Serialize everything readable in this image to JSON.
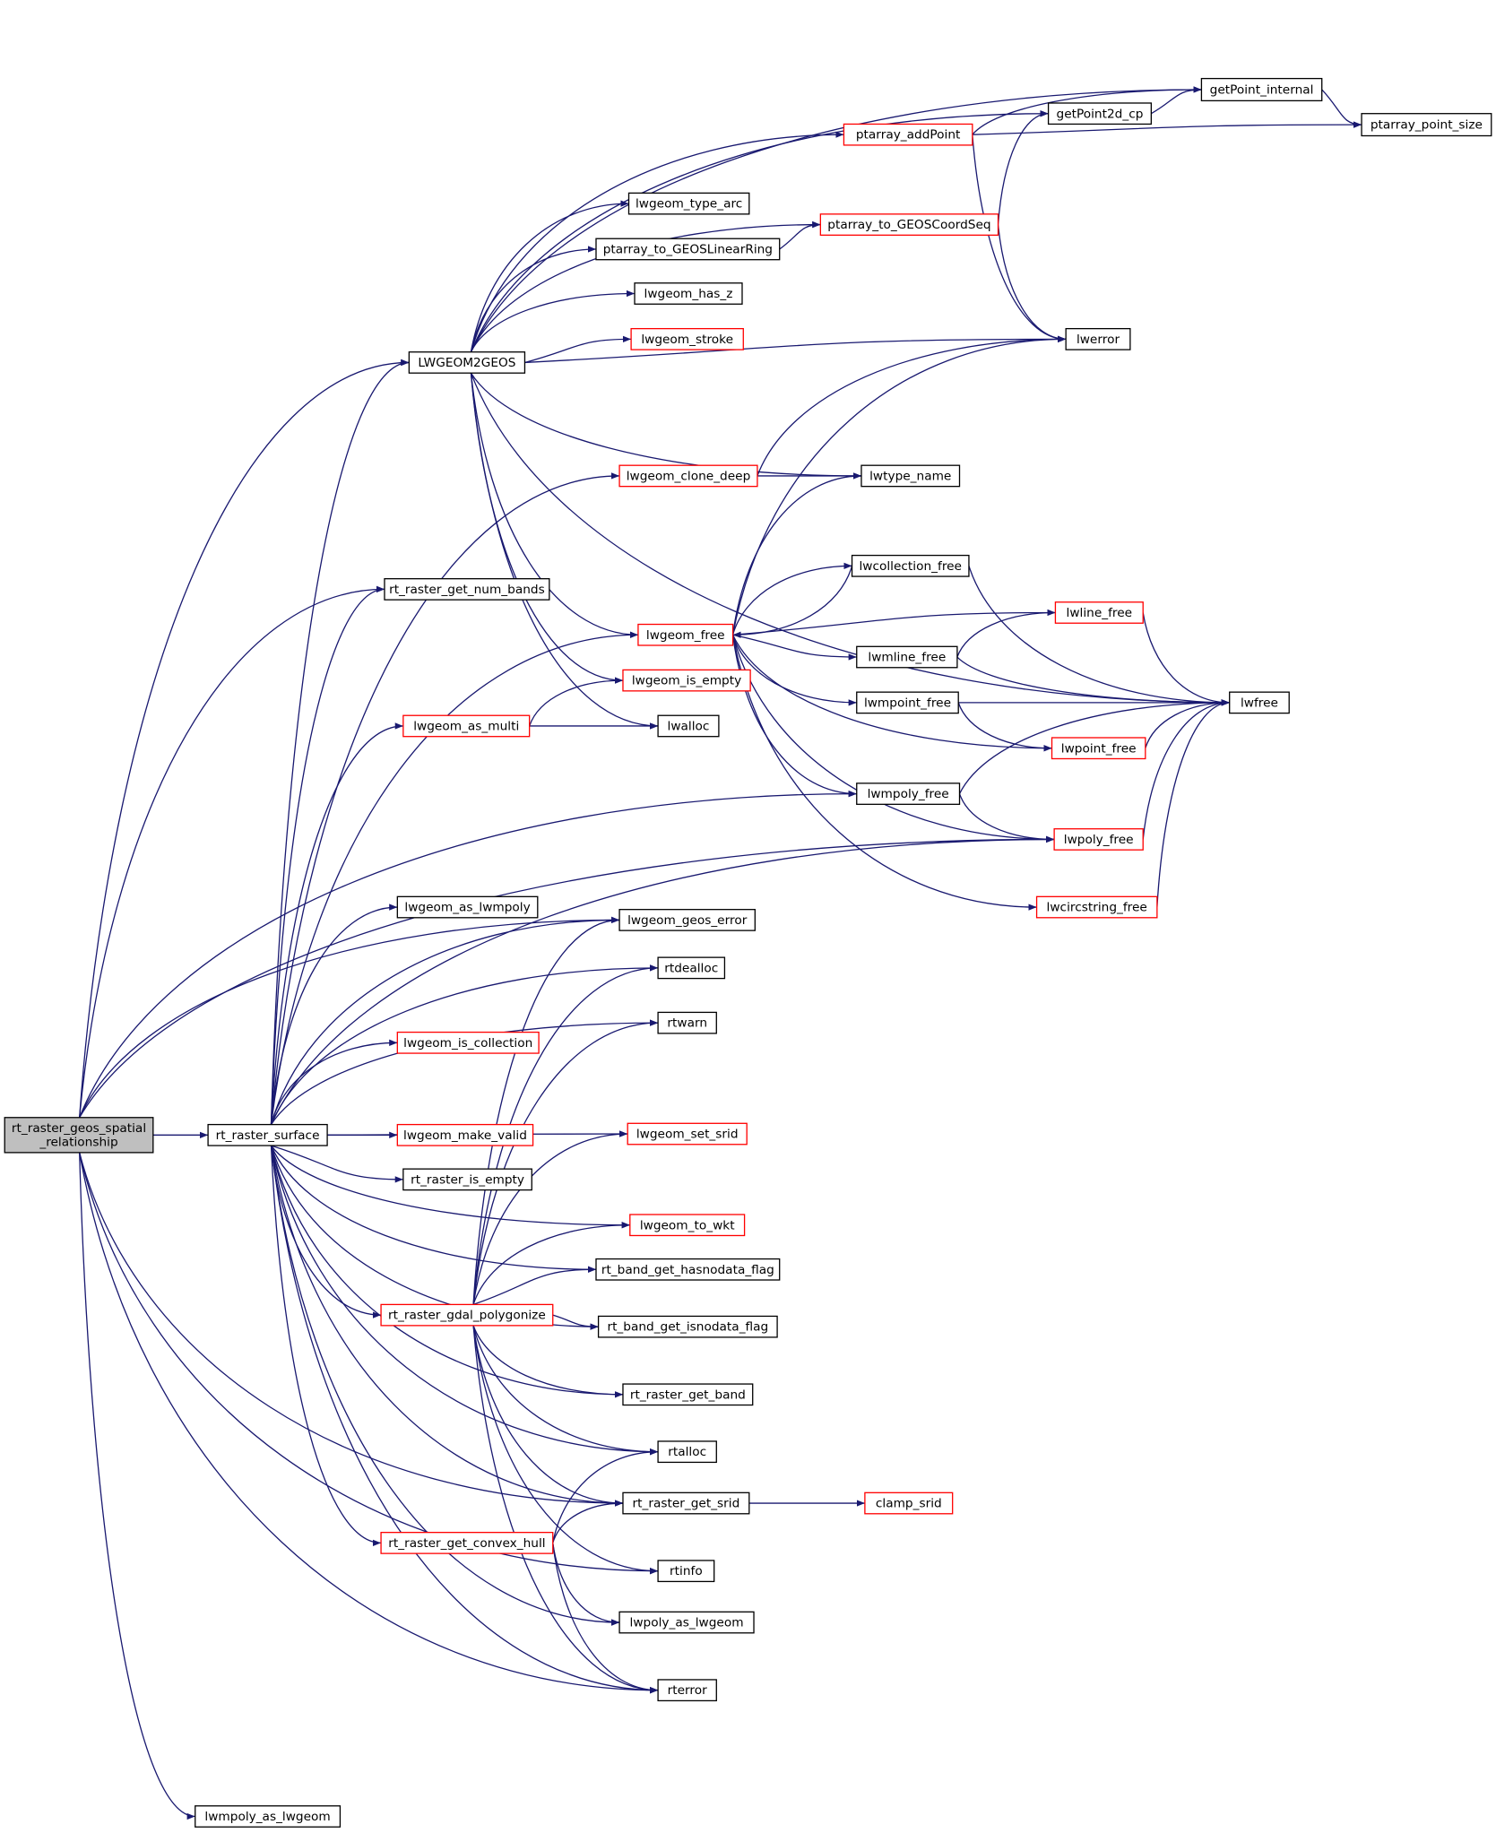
{
  "diagram": {
    "type": "call-graph",
    "colors": {
      "edge": "#191970",
      "root_fill": "#bfbfbf",
      "truncated_border": "#ff0000",
      "normal_border": "#000000"
    },
    "nodes": [
      {
        "id": "root",
        "label": [
          "rt_raster_geos_spatial",
          "_relationship"
        ],
        "style": "root"
      },
      {
        "id": "surface",
        "label": [
          "rt_raster_surface"
        ],
        "style": "normal"
      },
      {
        "id": "make_valid",
        "label": [
          "lwgeom_make_valid"
        ],
        "style": "red"
      },
      {
        "id": "is_empty_r",
        "label": [
          "rt_raster_is_empty"
        ],
        "style": "normal"
      },
      {
        "id": "l2g",
        "label": [
          "LWGEOM2GEOS"
        ],
        "style": "normal"
      },
      {
        "id": "num_bands",
        "label": [
          "rt_raster_get_num_bands"
        ],
        "style": "normal"
      },
      {
        "id": "as_multi",
        "label": [
          "lwgeom_as_multi"
        ],
        "style": "red"
      },
      {
        "id": "as_lwmpoly",
        "label": [
          "lwgeom_as_lwmpoly"
        ],
        "style": "normal"
      },
      {
        "id": "is_collection",
        "label": [
          "lwgeom_is_collection"
        ],
        "style": "red"
      },
      {
        "id": "polygonize",
        "label": [
          "rt_raster_gdal_polygonize"
        ],
        "style": "red"
      },
      {
        "id": "convex_hull",
        "label": [
          "rt_raster_get_convex_hull"
        ],
        "style": "red"
      },
      {
        "id": "mpoly_as_lwgeom",
        "label": [
          "lwmpoly_as_lwgeom"
        ],
        "style": "normal"
      },
      {
        "id": "type_arc",
        "label": [
          "lwgeom_type_arc"
        ],
        "style": "normal"
      },
      {
        "id": "to_linearring",
        "label": [
          "ptarray_to_GEOSLinearRing"
        ],
        "style": "normal"
      },
      {
        "id": "has_z",
        "label": [
          "lwgeom_has_z"
        ],
        "style": "normal"
      },
      {
        "id": "stroke",
        "label": [
          "lwgeom_stroke"
        ],
        "style": "red"
      },
      {
        "id": "clone_deep",
        "label": [
          "lwgeom_clone_deep"
        ],
        "style": "red"
      },
      {
        "id": "lwgeom_free",
        "label": [
          "lwgeom_free"
        ],
        "style": "red"
      },
      {
        "id": "is_empty",
        "label": [
          "lwgeom_is_empty"
        ],
        "style": "red"
      },
      {
        "id": "lwalloc",
        "label": [
          "lwalloc"
        ],
        "style": "normal"
      },
      {
        "id": "geos_error",
        "label": [
          "lwgeom_geos_error"
        ],
        "style": "normal"
      },
      {
        "id": "rtdealloc",
        "label": [
          "rtdealloc"
        ],
        "style": "normal"
      },
      {
        "id": "rtwarn",
        "label": [
          "rtwarn"
        ],
        "style": "normal"
      },
      {
        "id": "set_srid",
        "label": [
          "lwgeom_set_srid"
        ],
        "style": "red"
      },
      {
        "id": "to_wkt",
        "label": [
          "lwgeom_to_wkt"
        ],
        "style": "red"
      },
      {
        "id": "hasnodata",
        "label": [
          "rt_band_get_hasnodata_flag"
        ],
        "style": "normal"
      },
      {
        "id": "isnodata",
        "label": [
          "rt_band_get_isnodata_flag"
        ],
        "style": "normal"
      },
      {
        "id": "get_band",
        "label": [
          "rt_raster_get_band"
        ],
        "style": "normal"
      },
      {
        "id": "rtalloc",
        "label": [
          "rtalloc"
        ],
        "style": "normal"
      },
      {
        "id": "get_srid",
        "label": [
          "rt_raster_get_srid"
        ],
        "style": "normal"
      },
      {
        "id": "rtinfo",
        "label": [
          "rtinfo"
        ],
        "style": "normal"
      },
      {
        "id": "poly_as_lwgeom",
        "label": [
          "lwpoly_as_lwgeom"
        ],
        "style": "normal"
      },
      {
        "id": "rterror",
        "label": [
          "rterror"
        ],
        "style": "normal"
      },
      {
        "id": "addPoint",
        "label": [
          "ptarray_addPoint"
        ],
        "style": "red"
      },
      {
        "id": "coordseq",
        "label": [
          "ptarray_to_GEOSCoordSeq"
        ],
        "style": "red"
      },
      {
        "id": "getPoint2d_cp",
        "label": [
          "getPoint2d_cp"
        ],
        "style": "normal"
      },
      {
        "id": "getPoint_internal",
        "label": [
          "getPoint_internal"
        ],
        "style": "normal"
      },
      {
        "id": "point_size",
        "label": [
          "ptarray_point_size"
        ],
        "style": "normal"
      },
      {
        "id": "lwerror",
        "label": [
          "lwerror"
        ],
        "style": "normal"
      },
      {
        "id": "lwtype_name",
        "label": [
          "lwtype_name"
        ],
        "style": "normal"
      },
      {
        "id": "coll_free",
        "label": [
          "lwcollection_free"
        ],
        "style": "normal"
      },
      {
        "id": "mline_free",
        "label": [
          "lwmline_free"
        ],
        "style": "normal"
      },
      {
        "id": "mpoint_free",
        "label": [
          "lwmpoint_free"
        ],
        "style": "normal"
      },
      {
        "id": "mpoly_free",
        "label": [
          "lwmpoly_free"
        ],
        "style": "normal"
      },
      {
        "id": "line_free",
        "label": [
          "lwline_free"
        ],
        "style": "red"
      },
      {
        "id": "point_free",
        "label": [
          "lwpoint_free"
        ],
        "style": "red"
      },
      {
        "id": "poly_free",
        "label": [
          "lwpoly_free"
        ],
        "style": "red"
      },
      {
        "id": "circ_free",
        "label": [
          "lwcircstring_free"
        ],
        "style": "red"
      },
      {
        "id": "lwfree",
        "label": [
          "lwfree"
        ],
        "style": "normal"
      },
      {
        "id": "clamp_srid",
        "label": [
          "clamp_srid"
        ],
        "style": "red"
      }
    ],
    "edges": [
      [
        "root",
        "surface"
      ],
      [
        "root",
        "l2g"
      ],
      [
        "root",
        "num_bands"
      ],
      [
        "root",
        "mpoly_free"
      ],
      [
        "root",
        "poly_free"
      ],
      [
        "root",
        "geos_error"
      ],
      [
        "root",
        "get_srid"
      ],
      [
        "root",
        "rtinfo"
      ],
      [
        "root",
        "rterror"
      ],
      [
        "root",
        "mpoly_as_lwgeom"
      ],
      [
        "surface",
        "l2g"
      ],
      [
        "surface",
        "num_bands"
      ],
      [
        "surface",
        "lwgeom_free"
      ],
      [
        "surface",
        "as_multi"
      ],
      [
        "surface",
        "clone_deep"
      ],
      [
        "surface",
        "poly_free"
      ],
      [
        "surface",
        "as_lwmpoly"
      ],
      [
        "surface",
        "geos_error"
      ],
      [
        "surface",
        "rtdealloc"
      ],
      [
        "surface",
        "rtwarn"
      ],
      [
        "surface",
        "is_collection"
      ],
      [
        "surface",
        "set_srid"
      ],
      [
        "surface",
        "make_valid"
      ],
      [
        "surface",
        "is_empty_r"
      ],
      [
        "surface",
        "to_wkt"
      ],
      [
        "surface",
        "hasnodata"
      ],
      [
        "surface",
        "polygonize"
      ],
      [
        "surface",
        "isnodata"
      ],
      [
        "surface",
        "get_band"
      ],
      [
        "surface",
        "rtalloc"
      ],
      [
        "surface",
        "get_srid"
      ],
      [
        "surface",
        "convex_hull"
      ],
      [
        "surface",
        "poly_as_lwgeom"
      ],
      [
        "surface",
        "rterror"
      ],
      [
        "l2g",
        "getPoint_internal"
      ],
      [
        "l2g",
        "getPoint2d_cp"
      ],
      [
        "l2g",
        "addPoint"
      ],
      [
        "l2g",
        "coordseq"
      ],
      [
        "l2g",
        "type_arc"
      ],
      [
        "l2g",
        "to_linearring"
      ],
      [
        "l2g",
        "has_z"
      ],
      [
        "l2g",
        "stroke"
      ],
      [
        "l2g",
        "lwerror"
      ],
      [
        "l2g",
        "lwfree"
      ],
      [
        "l2g",
        "lwtype_name"
      ],
      [
        "l2g",
        "lwgeom_free"
      ],
      [
        "l2g",
        "is_empty"
      ],
      [
        "l2g",
        "lwalloc"
      ],
      [
        "addPoint",
        "getPoint_internal"
      ],
      [
        "addPoint",
        "point_size"
      ],
      [
        "addPoint",
        "lwerror"
      ],
      [
        "coordseq",
        "getPoint2d_cp"
      ],
      [
        "coordseq",
        "lwerror"
      ],
      [
        "to_linearring",
        "coordseq"
      ],
      [
        "getPoint2d_cp",
        "getPoint_internal"
      ],
      [
        "getPoint_internal",
        "point_size"
      ],
      [
        "clone_deep",
        "lwerror"
      ],
      [
        "clone_deep",
        "lwtype_name"
      ],
      [
        "lwgeom_free",
        "lwtype_name"
      ],
      [
        "lwgeom_free",
        "lwerror"
      ],
      [
        "lwgeom_free",
        "coll_free"
      ],
      [
        "lwgeom_free",
        "line_free"
      ],
      [
        "lwgeom_free",
        "mline_free"
      ],
      [
        "lwgeom_free",
        "mpoint_free"
      ],
      [
        "lwgeom_free",
        "point_free"
      ],
      [
        "lwgeom_free",
        "mpoly_free"
      ],
      [
        "lwgeom_free",
        "poly_free"
      ],
      [
        "lwgeom_free",
        "circ_free"
      ],
      [
        "coll_free",
        "lwgeom_free"
      ],
      [
        "coll_free",
        "lwfree"
      ],
      [
        "mline_free",
        "line_free"
      ],
      [
        "mline_free",
        "lwfree"
      ],
      [
        "mpoint_free",
        "lwfree"
      ],
      [
        "mpoint_free",
        "point_free"
      ],
      [
        "mpoly_free",
        "lwfree"
      ],
      [
        "mpoly_free",
        "poly_free"
      ],
      [
        "line_free",
        "lwfree"
      ],
      [
        "point_free",
        "lwfree"
      ],
      [
        "poly_free",
        "lwfree"
      ],
      [
        "circ_free",
        "lwfree"
      ],
      [
        "as_multi",
        "is_empty"
      ],
      [
        "as_multi",
        "lwalloc"
      ],
      [
        "polygonize",
        "geos_error"
      ],
      [
        "polygonize",
        "rtdealloc"
      ],
      [
        "polygonize",
        "rtwarn"
      ],
      [
        "polygonize",
        "set_srid"
      ],
      [
        "polygonize",
        "to_wkt"
      ],
      [
        "polygonize",
        "hasnodata"
      ],
      [
        "polygonize",
        "isnodata"
      ],
      [
        "polygonize",
        "get_band"
      ],
      [
        "polygonize",
        "rtalloc"
      ],
      [
        "polygonize",
        "get_srid"
      ],
      [
        "polygonize",
        "rtinfo"
      ],
      [
        "polygonize",
        "rterror"
      ],
      [
        "convex_hull",
        "rtalloc"
      ],
      [
        "convex_hull",
        "get_srid"
      ],
      [
        "convex_hull",
        "poly_as_lwgeom"
      ],
      [
        "convex_hull",
        "rterror"
      ],
      [
        "get_srid",
        "clamp_srid"
      ]
    ]
  }
}
